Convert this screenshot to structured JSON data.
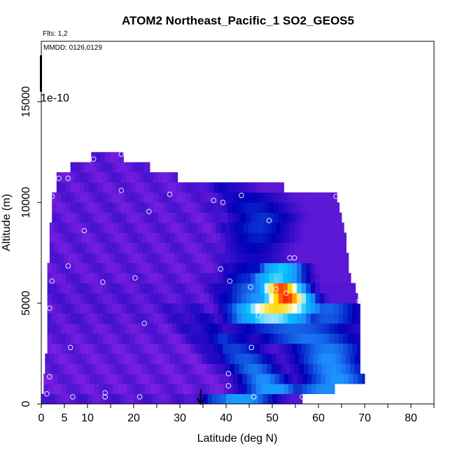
{
  "chart_data": {
    "type": "heatmap",
    "title": "ATOM2 Northeast_Pacific_1 SO2_GEOS5",
    "annotations": {
      "flights": "Flts: 1,2",
      "dates": "MMDD: 0126,0129",
      "colorbar_max_label": "1e-10"
    },
    "xlabel": "Latitude (deg N)",
    "ylabel": "Altitude (m)",
    "xlim": [
      0,
      85
    ],
    "ylim": [
      0,
      18000
    ],
    "x_ticks": [
      0,
      5,
      10,
      20,
      30,
      40,
      50,
      60,
      70,
      80
    ],
    "y_ticks": [
      0,
      5000,
      10000,
      15000
    ],
    "colorscale": [
      "#7a1fe0",
      "#0000b8",
      "#1e90ff",
      "#00bfff",
      "#ffffff",
      "#ffd700",
      "#ff0000"
    ],
    "marker_arrow_latitude": 34.5,
    "cell_width_deg": 1,
    "rows": [
      {
        "y0": 0,
        "y1": 500,
        "x0": 0,
        "x1": 56.5,
        "base": 0.05,
        "hot": [
          {
            "c": 43,
            "w": 8,
            "a": 0.38
          }
        ]
      },
      {
        "y0": 500,
        "y1": 1000,
        "x0": 0.5,
        "x1": 63.5,
        "base": 0.03,
        "hot": [
          {
            "c": 50,
            "w": 7,
            "a": 0.38
          },
          {
            "c": 62,
            "w": 10,
            "a": 0.33
          }
        ]
      },
      {
        "y0": 1000,
        "y1": 1500,
        "x0": 0.5,
        "x1": 70,
        "base": 0.03,
        "hot": [
          {
            "c": 48,
            "w": 6,
            "a": 0.33
          },
          {
            "c": 64,
            "w": 8,
            "a": 0.34
          }
        ]
      },
      {
        "y0": 1500,
        "y1": 2000,
        "x0": 0.8,
        "x1": 69,
        "base": 0.03,
        "hot": [
          {
            "c": 46,
            "w": 6,
            "a": 0.3
          },
          {
            "c": 63,
            "w": 8,
            "a": 0.33
          }
        ]
      },
      {
        "y0": 2000,
        "y1": 2500,
        "x0": 0.8,
        "x1": 69,
        "base": 0.03,
        "hot": [
          {
            "c": 44,
            "w": 7,
            "a": 0.27
          },
          {
            "c": 62,
            "w": 8,
            "a": 0.33
          }
        ]
      },
      {
        "y0": 2500,
        "y1": 3000,
        "x0": 1.3,
        "x1": 69,
        "base": 0.03,
        "hot": [
          {
            "c": 42,
            "w": 7,
            "a": 0.24
          },
          {
            "c": 62,
            "w": 9,
            "a": 0.31
          }
        ]
      },
      {
        "y0": 3000,
        "y1": 3500,
        "x0": 1.3,
        "x1": 69,
        "base": 0.04,
        "hot": [
          {
            "c": 40,
            "w": 8,
            "a": 0.2
          },
          {
            "c": 58,
            "w": 12,
            "a": 0.3
          }
        ]
      },
      {
        "y0": 3500,
        "y1": 4000,
        "x0": 1.3,
        "x1": 69,
        "base": 0.04,
        "hot": [
          {
            "c": 36,
            "w": 8,
            "a": 0.14
          },
          {
            "c": 55,
            "w": 14,
            "a": 0.28
          }
        ]
      },
      {
        "y0": 4000,
        "y1": 4500,
        "x0": 1.3,
        "x1": 69,
        "base": 0.05,
        "hot": [
          {
            "c": 34,
            "w": 8,
            "a": 0.12
          },
          {
            "c": 50,
            "w": 9,
            "a": 0.6
          },
          {
            "c": 62,
            "w": 8,
            "a": 0.27
          }
        ]
      },
      {
        "y0": 4500,
        "y1": 5000,
        "x0": 1.3,
        "x1": 69,
        "base": 0.05,
        "hot": [
          {
            "c": 31,
            "w": 7,
            "a": 0.1
          },
          {
            "c": 51,
            "w": 9,
            "a": 0.82
          },
          {
            "c": 62,
            "w": 8,
            "a": 0.28
          }
        ]
      },
      {
        "y0": 5000,
        "y1": 5500,
        "x0": 1.3,
        "x1": 68.5,
        "base": 0.05,
        "hot": [
          {
            "c": 53,
            "w": 5.5,
            "a": 0.97
          },
          {
            "c": 48,
            "w": 9,
            "a": 0.35
          }
        ]
      },
      {
        "y0": 5500,
        "y1": 6000,
        "x0": 1.3,
        "x1": 68,
        "base": 0.05,
        "hot": [
          {
            "c": 52,
            "w": 5,
            "a": 0.95
          },
          {
            "c": 47,
            "w": 9,
            "a": 0.3
          }
        ]
      },
      {
        "y0": 6000,
        "y1": 6500,
        "x0": 1.3,
        "x1": 67,
        "base": 0.04,
        "hot": [
          {
            "c": 51,
            "w": 6,
            "a": 0.55
          },
          {
            "c": 46,
            "w": 9,
            "a": 0.22
          }
        ]
      },
      {
        "y0": 6500,
        "y1": 7000,
        "x0": 1.3,
        "x1": 66.5,
        "base": 0.04,
        "hot": [
          {
            "c": 52,
            "w": 5,
            "a": 0.52
          },
          {
            "c": 46,
            "w": 8,
            "a": 0.18
          }
        ]
      },
      {
        "y0": 7000,
        "y1": 7500,
        "x0": 1.8,
        "x1": 66.5,
        "base": 0.04,
        "hot": [
          {
            "c": 46,
            "w": 8,
            "a": 0.14
          }
        ]
      },
      {
        "y0": 7500,
        "y1": 8000,
        "x0": 1.8,
        "x1": 66,
        "base": 0.04,
        "hot": [
          {
            "c": 46,
            "w": 8,
            "a": 0.16
          }
        ]
      },
      {
        "y0": 8000,
        "y1": 8500,
        "x0": 1.8,
        "x1": 66,
        "base": 0.04,
        "hot": [
          {
            "c": 47,
            "w": 8,
            "a": 0.2
          }
        ]
      },
      {
        "y0": 8500,
        "y1": 9000,
        "x0": 1.8,
        "x1": 65.5,
        "base": 0.04,
        "hot": [
          {
            "c": 47,
            "w": 8,
            "a": 0.22
          }
        ]
      },
      {
        "y0": 9000,
        "y1": 9500,
        "x0": 2.3,
        "x1": 65,
        "base": 0.04,
        "hot": [
          {
            "c": 48,
            "w": 8,
            "a": 0.22
          }
        ]
      },
      {
        "y0": 9500,
        "y1": 10000,
        "x0": 2.3,
        "x1": 64.5,
        "base": 0.04,
        "hot": [
          {
            "c": 46,
            "w": 9,
            "a": 0.2
          }
        ]
      },
      {
        "y0": 10000,
        "y1": 10500,
        "x0": 2.3,
        "x1": 64,
        "base": 0.04,
        "hot": [
          {
            "c": 45,
            "w": 9,
            "a": 0.16
          }
        ]
      },
      {
        "y0": 10500,
        "y1": 11000,
        "x0": 3.3,
        "x1": 52.5,
        "base": 0.04,
        "hot": [
          {
            "c": 40,
            "w": 8,
            "a": 0.12
          }
        ]
      },
      {
        "y0": 11000,
        "y1": 11500,
        "x0": 3.3,
        "x1": 29.5,
        "base": 0.04,
        "hot": []
      },
      {
        "y0": 11500,
        "y1": 12000,
        "x0": 6.3,
        "x1": 23.5,
        "base": 0.04,
        "hot": []
      },
      {
        "y0": 12000,
        "y1": 12500,
        "x0": 10.8,
        "x1": 17.8,
        "base": 0.04,
        "hot": []
      }
    ],
    "points": [
      {
        "x": 1.2,
        "y": 500
      },
      {
        "x": 6.8,
        "y": 350
      },
      {
        "x": 13.8,
        "y": 350
      },
      {
        "x": 21.3,
        "y": 350
      },
      {
        "x": 13.8,
        "y": 550
      },
      {
        "x": 40.5,
        "y": 900
      },
      {
        "x": 46,
        "y": 350
      },
      {
        "x": 56.5,
        "y": 350
      },
      {
        "x": 1.8,
        "y": 1350
      },
      {
        "x": 40.5,
        "y": 1500
      },
      {
        "x": 6.3,
        "y": 2800
      },
      {
        "x": 45.5,
        "y": 2800
      },
      {
        "x": 22.3,
        "y": 4000
      },
      {
        "x": 47,
        "y": 4400
      },
      {
        "x": 1.8,
        "y": 4750
      },
      {
        "x": 68.8,
        "y": 5100
      },
      {
        "x": 53,
        "y": 5500
      },
      {
        "x": 50.8,
        "y": 5700
      },
      {
        "x": 45.3,
        "y": 5800
      },
      {
        "x": 13.3,
        "y": 6050
      },
      {
        "x": 2.3,
        "y": 6100
      },
      {
        "x": 20.3,
        "y": 6250
      },
      {
        "x": 40.8,
        "y": 6100
      },
      {
        "x": 38.8,
        "y": 6700
      },
      {
        "x": 5.8,
        "y": 6850
      },
      {
        "x": 53.8,
        "y": 7250
      },
      {
        "x": 54.8,
        "y": 7250
      },
      {
        "x": 9.3,
        "y": 8600
      },
      {
        "x": 49.3,
        "y": 9100
      },
      {
        "x": 23.3,
        "y": 9550
      },
      {
        "x": 37.3,
        "y": 10100
      },
      {
        "x": 39.3,
        "y": 10000
      },
      {
        "x": 2.3,
        "y": 10300
      },
      {
        "x": 17.3,
        "y": 10600
      },
      {
        "x": 27.8,
        "y": 10400
      },
      {
        "x": 43.3,
        "y": 10350
      },
      {
        "x": 63.8,
        "y": 10300
      },
      {
        "x": 3.8,
        "y": 11200
      },
      {
        "x": 5.8,
        "y": 11200
      },
      {
        "x": 11.3,
        "y": 12150
      },
      {
        "x": 17.3,
        "y": 12400
      }
    ]
  }
}
